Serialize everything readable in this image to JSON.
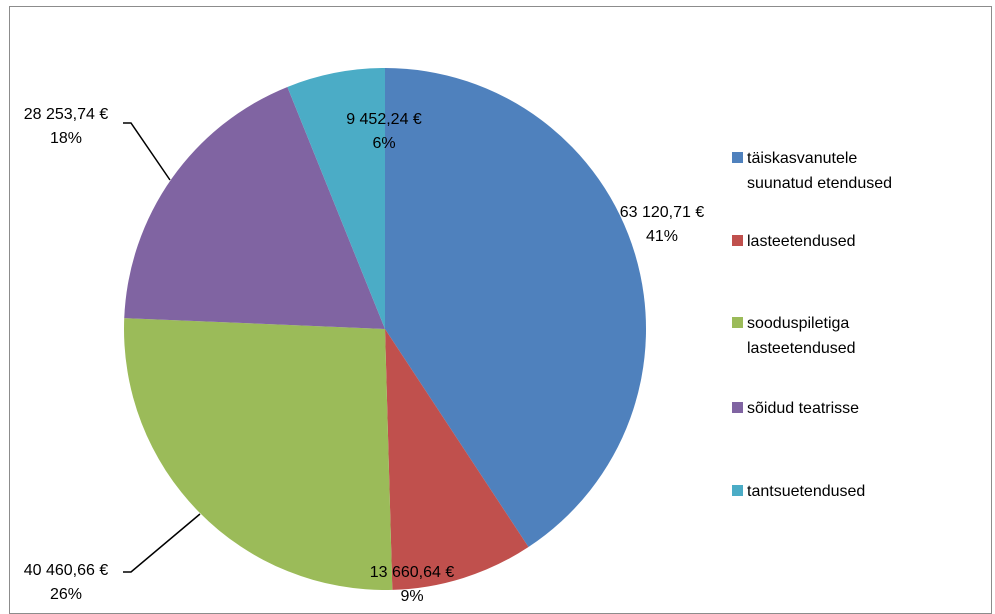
{
  "chart_data": {
    "type": "pie",
    "title": "",
    "legend_position": "right",
    "categories": [
      "täiskasvanutele suunatud etendused",
      "lasteetendused",
      "sooduspiletiga lasteetendused",
      "sõidud teatrisse",
      "tantsuetendused"
    ],
    "legend_lines": [
      [
        "täiskasvanutele",
        "suunatud etendused"
      ],
      [
        "lasteetendused"
      ],
      [
        "sooduspiletiga",
        "lasteetendused"
      ],
      [
        "sõidud teatrisse"
      ],
      [
        "tantsuetendused"
      ]
    ],
    "values": [
      63120.71,
      13660.64,
      40460.66,
      28253.74,
      9452.24
    ],
    "value_labels": [
      "63 120,71 €",
      "13 660,64 €",
      "40 460,66 €",
      "28 253,74 €",
      "9 452,24 €"
    ],
    "percent_labels": [
      "41%",
      "9%",
      "26%",
      "18%",
      "6%"
    ],
    "colors": [
      "#4F81BD",
      "#C0504D",
      "#9BBB59",
      "#8064A2",
      "#4BACC6"
    ]
  }
}
